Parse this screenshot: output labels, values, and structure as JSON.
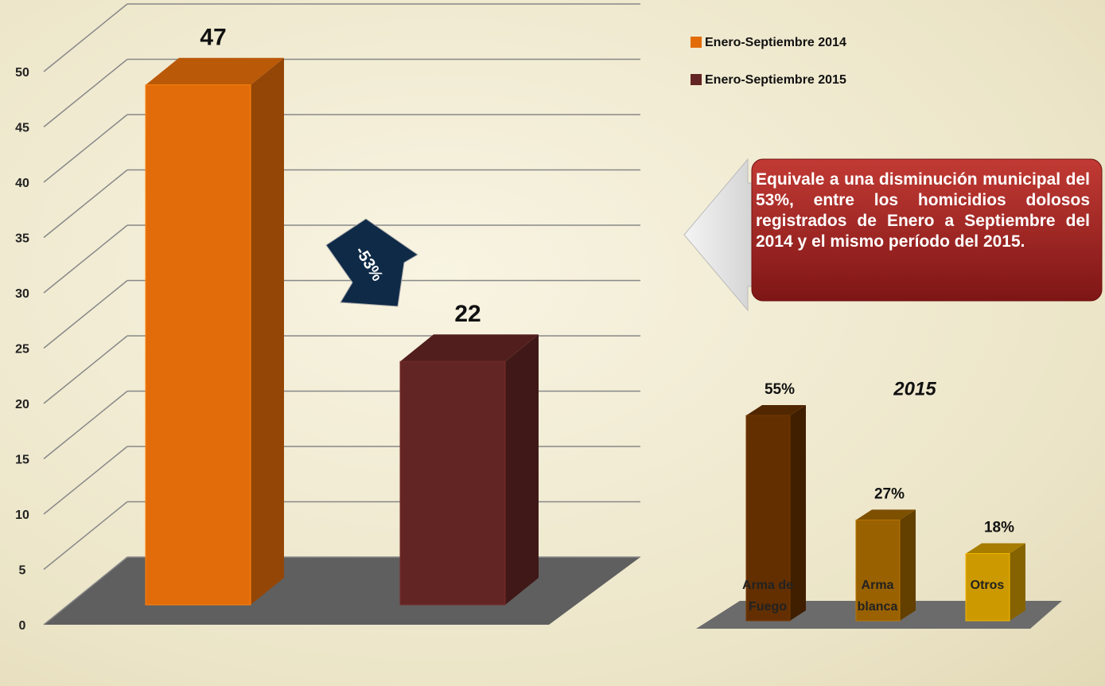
{
  "chart_data": [
    {
      "type": "bar3d",
      "series": [
        {
          "name": "Enero-Septiembre 2014",
          "color": "#e36c0a",
          "values": [
            47
          ]
        },
        {
          "name": "Enero-Septiembre 2015",
          "color": "#632523",
          "values": [
            22
          ]
        }
      ],
      "ylim": [
        0,
        50
      ],
      "yticks": [
        0,
        5,
        10,
        15,
        20,
        25,
        30,
        35,
        40,
        45,
        50
      ],
      "grid": true,
      "legend": "right",
      "annotations": [
        "-53%",
        "Equivale a una disminución municipal del 53%, entre los homicidios dolosos registrados de Enero a Septiembre del 2014 y el mismo período del 2015."
      ]
    },
    {
      "type": "bar3d-small",
      "title": "2015",
      "categories": [
        "Arma de Fuego",
        "Arma blanca",
        "Otros"
      ],
      "values": [
        55,
        27,
        18
      ],
      "value_labels": [
        "55%",
        "27%",
        "18%"
      ],
      "colors": [
        "#632f00",
        "#996100",
        "#cc9900"
      ]
    }
  ]
}
